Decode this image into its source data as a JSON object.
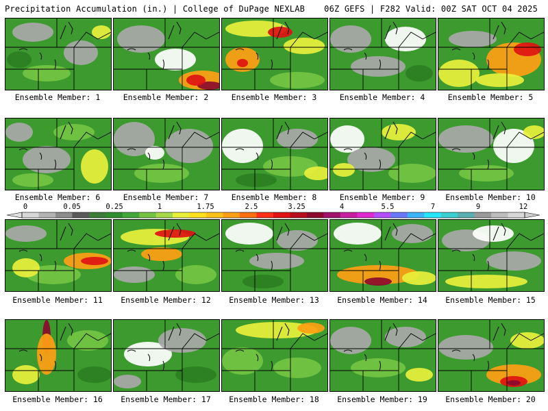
{
  "header": {
    "left": "Precipitation Accumulation (in.) | College of DuPage NEXLAB",
    "right": "06Z GEFS | F282 Valid: 00Z SAT OCT 04 2025"
  },
  "colorbar": {
    "tick_labels": [
      "0",
      "0.05",
      "0.25",
      "1",
      "1.75",
      "2.5",
      "3.25",
      "4",
      "5.5",
      "7",
      "9",
      "12"
    ],
    "colors": [
      "#d8d8d8",
      "#b4b4b4",
      "#8c8c8c",
      "#5a5a5a",
      "#3e7c3a",
      "#2f8f2e",
      "#42a83a",
      "#74c443",
      "#a6d94a",
      "#e8f03c",
      "#ffe01e",
      "#ffc21a",
      "#ff9f14",
      "#ff6e10",
      "#ff2f1a",
      "#e01212",
      "#b80e1e",
      "#8c0a2e",
      "#a0146e",
      "#c81ea0",
      "#e028d0",
      "#b44cff",
      "#6a78ff",
      "#3cb4ff",
      "#28e6ff",
      "#3ccfcf",
      "#5ab0b0",
      "#9a9a9a",
      "#bdbdbd",
      "#d8d8d8"
    ]
  },
  "palette": {
    "background": "#3c9a2e",
    "dark_green": "#2c7f22",
    "light_green": "#74c443",
    "yellow": "#e8f03c",
    "orange": "#ff9f14",
    "red": "#e01212",
    "purple": "#8c0a2e",
    "gray": "#a8a8a8",
    "white": "#ffffff"
  },
  "members": [
    {
      "label": "Ensemble Member: 1"
    },
    {
      "label": "Ensemble Member: 2"
    },
    {
      "label": "Ensemble Member: 3"
    },
    {
      "label": "Ensemble Member: 4"
    },
    {
      "label": "Ensemble Member: 5"
    },
    {
      "label": "Ensemble Member: 6"
    },
    {
      "label": "Ensemble Member: 7"
    },
    {
      "label": "Ensemble Member: 8"
    },
    {
      "label": "Ensemble Member: 9"
    },
    {
      "label": "Ensemble Member: 10"
    },
    {
      "label": "Ensemble Member: 11"
    },
    {
      "label": "Ensemble Member: 12"
    },
    {
      "label": "Ensemble Member: 13"
    },
    {
      "label": "Ensemble Member: 14"
    },
    {
      "label": "Ensemble Member: 15"
    },
    {
      "label": "Ensemble Member: 16"
    },
    {
      "label": "Ensemble Member: 17"
    },
    {
      "label": "Ensemble Member: 18"
    },
    {
      "label": "Ensemble Member: 19"
    },
    {
      "label": "Ensemble Member: 20"
    }
  ]
}
